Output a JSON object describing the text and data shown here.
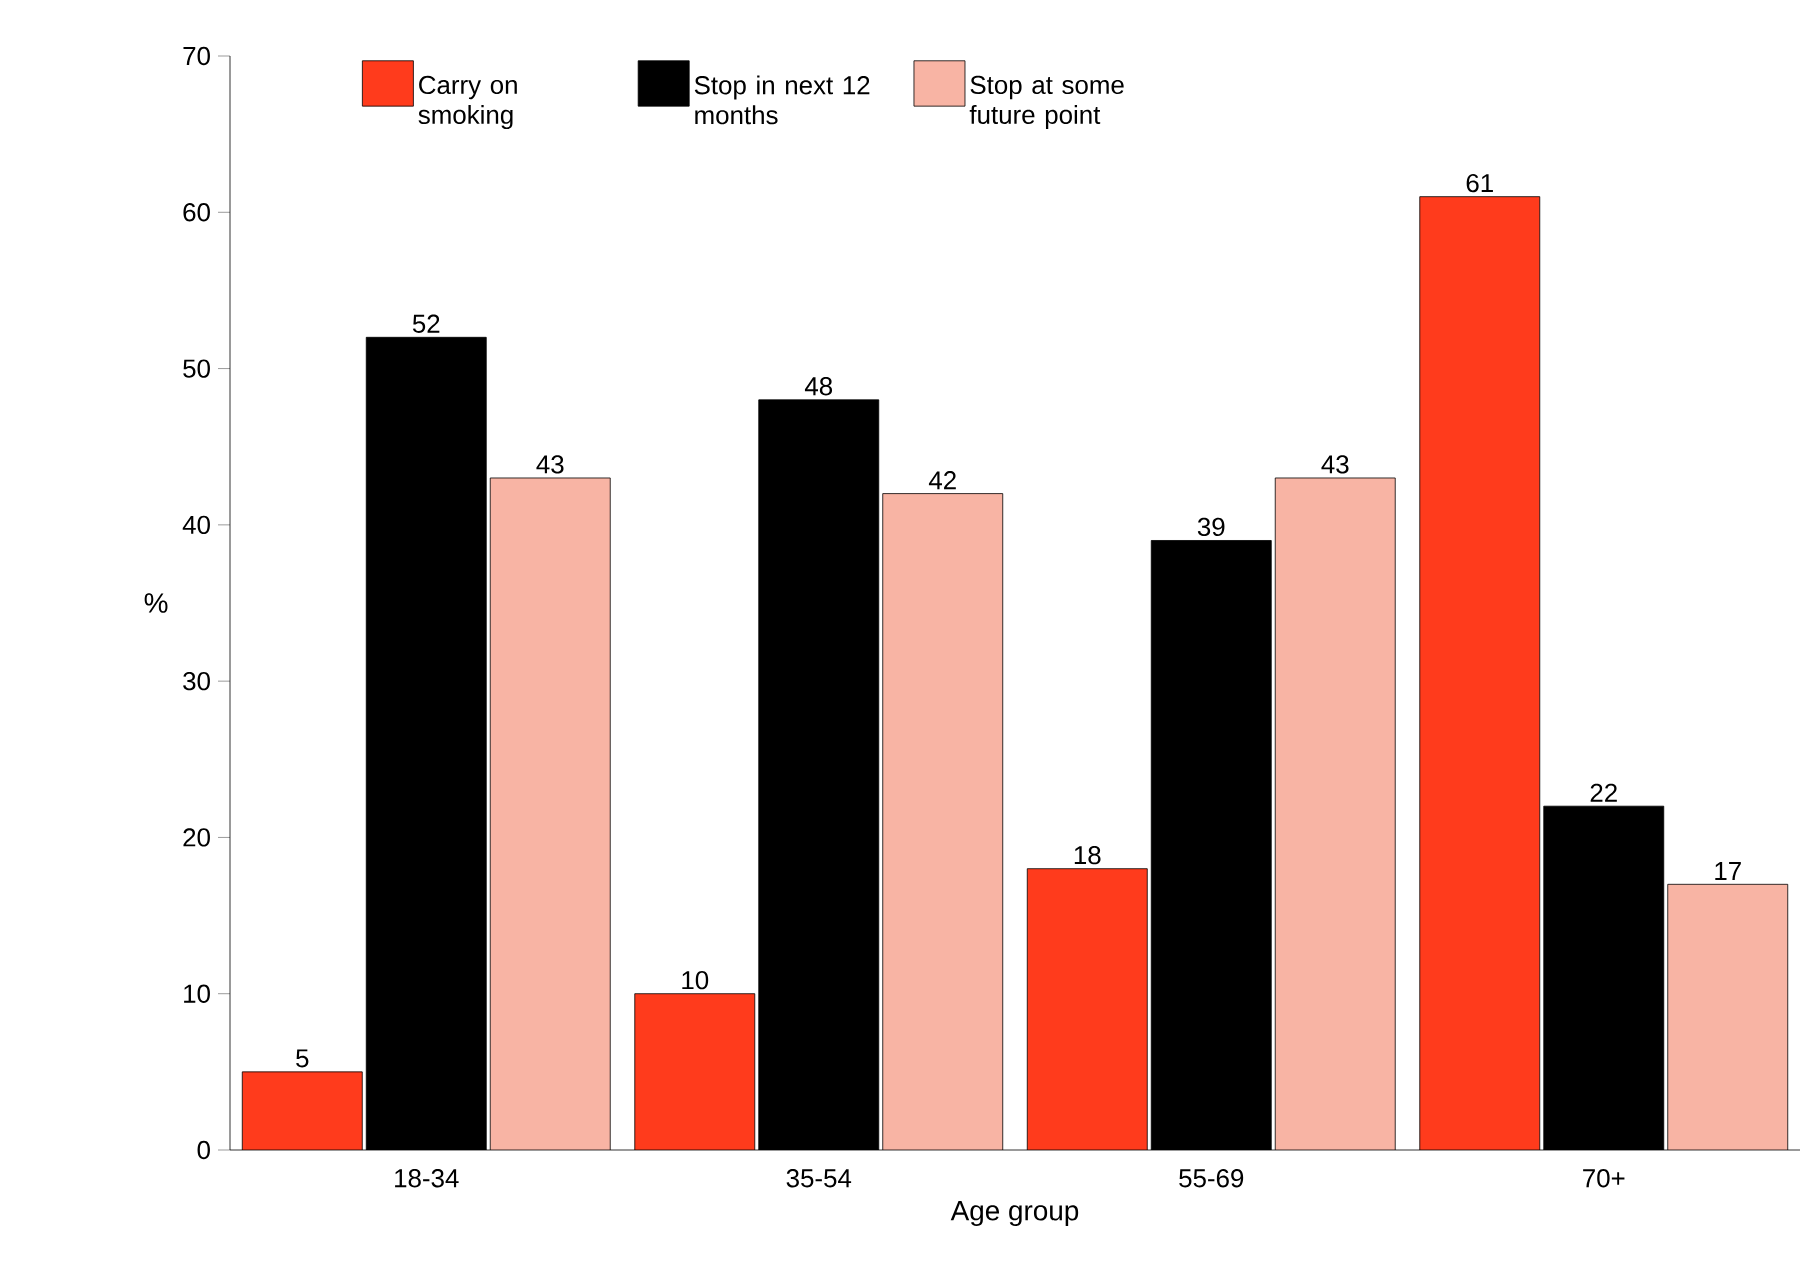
{
  "chart_data": {
    "type": "bar",
    "xlabel": "Age group",
    "ylabel": "%",
    "categories": [
      "18-34",
      "35-54",
      "55-69",
      "70+"
    ],
    "series": [
      {
        "name": "Carry on smoking",
        "color": "#ff3b1c",
        "values": [
          5,
          10,
          18,
          61
        ]
      },
      {
        "name": "Stop in next 12 months",
        "color": "#000000",
        "values": [
          52,
          48,
          39,
          22
        ]
      },
      {
        "name": "Stop at some future point",
        "color": "#f8b4a4",
        "values": [
          43,
          42,
          43,
          17
        ]
      }
    ],
    "ylim": [
      0,
      70
    ],
    "yticks": [
      0,
      10,
      20,
      30,
      40,
      50,
      60,
      70
    ],
    "data_labels": true,
    "legend": "top",
    "grid": false
  }
}
